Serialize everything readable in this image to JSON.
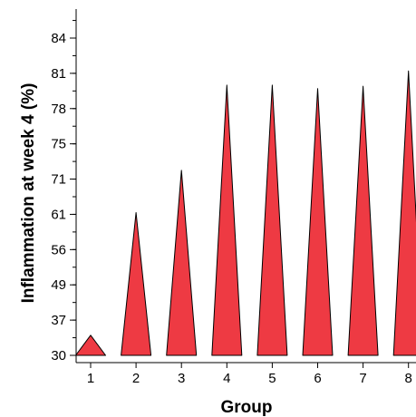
{
  "chart_data": {
    "type": "bar",
    "mark_shape": "triangle",
    "title": "",
    "xlabel": "Group",
    "ylabel": "Inflammation at week 4 (%)",
    "categories": [
      "1",
      "2",
      "3",
      "4",
      "5",
      "6",
      "7",
      "8"
    ],
    "values": [
      34,
      61.5,
      72,
      80,
      80,
      79.7,
      79.9,
      81.2
    ],
    "y_ticks": [
      "30",
      "37",
      "49",
      "56",
      "61",
      "71",
      "75",
      "78",
      "81",
      "84"
    ],
    "y_axis_note": "tick labels are evenly spaced (categorical-like, non-linear scale)",
    "grid": false,
    "legend": "none",
    "colors": {
      "fill": "#EE3A43",
      "stroke": "#000000"
    }
  }
}
